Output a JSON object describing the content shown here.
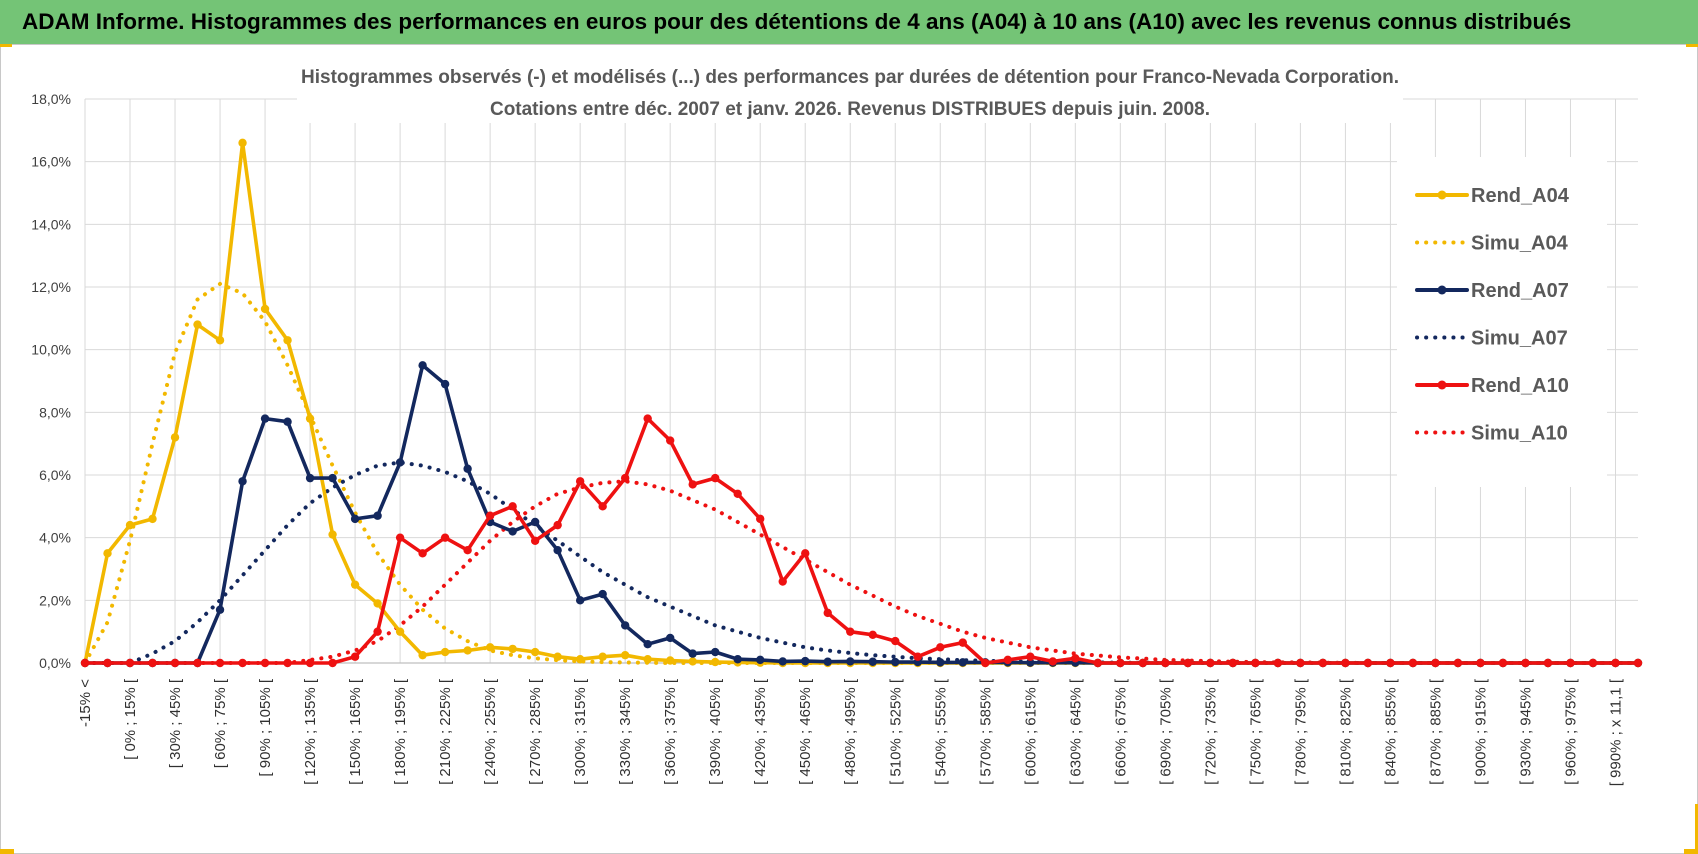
{
  "header": {
    "title": "ADAM Informe. Histogrammes des performances en euros pour des détentions de 4 ans (A04) à 10 ans (A10) avec les revenus connus distribués"
  },
  "colors": {
    "header_bg": "#74c476",
    "gold": "#f2b800",
    "navy": "#13285e",
    "red": "#ee1111",
    "grid": "#d9d9d9"
  },
  "chart_data": {
    "type": "line",
    "title": [
      "Histogrammes observés (-) et modélisés (...) des performances par durées de détention pour Franco-Nevada Corporation.",
      "Cotations entre déc. 2007 et janv. 2026.  Revenus DISTRIBUES depuis juin. 2008."
    ],
    "ylim": [
      0,
      18
    ],
    "y_ticks": [
      "0,0%",
      "2,0%",
      "4,0%",
      "6,0%",
      "8,0%",
      "10,0%",
      "12,0%",
      "14,0%",
      "16,0%",
      "18,0%"
    ],
    "x_labels": [
      "-15% <",
      "[ 0% ; 15% [",
      "[ 30% ; 45% [",
      "[ 60% ; 75% [",
      "[ 90% ; 105% [",
      "[ 120% ; 135% [",
      "[ 150% ; 165% [",
      "[ 180% ; 195% [",
      "[ 210% ; 225% [",
      "[ 240% ; 255% [",
      "[ 270% ; 285% [",
      "[ 300% ; 315% [",
      "[ 330% ; 345% [",
      "[ 360% ; 375% [",
      "[ 390% ; 405% [",
      "[ 420% ; 435% [",
      "[ 450% ; 465% [",
      "[ 480% ; 495% [",
      "[ 510% ; 525% [",
      "[ 540% ; 555% [",
      "[ 570% ; 585% [",
      "[ 600% ; 615% [",
      "[ 630% ; 645% [",
      "[ 660% ; 675% [",
      "[ 690% ; 705% [",
      "[ 720% ; 735% [",
      "[ 750% ; 765% [",
      "[ 780% ; 795% [",
      "[ 810% ; 825% [",
      "[ 840% ; 855% [",
      "[ 870% ; 885% [",
      "[ 900% ; 915% [",
      "[ 930% ; 945% [",
      "[ 960% ; 975% [",
      "[ 990% ; x 11,1 ["
    ],
    "num_points": 70,
    "series": [
      {
        "name": "Rend_A04",
        "style": "solid",
        "color": "#f2b800",
        "values": [
          0.0,
          3.5,
          4.4,
          4.6,
          7.2,
          10.8,
          10.3,
          16.6,
          11.3,
          10.3,
          7.8,
          4.1,
          2.5,
          1.9,
          1.0,
          0.25,
          0.35,
          0.4,
          0.5,
          0.45,
          0.35,
          0.2,
          0.12,
          0.2,
          0.25,
          0.12,
          0.08,
          0.05,
          0.03,
          0.02,
          0.01,
          0.0,
          0.0,
          0.0,
          0.0,
          0.0,
          0.0,
          0.0,
          0.0,
          0.0,
          0.0,
          0.0,
          0.0,
          0.0,
          0.0,
          0.0,
          0.0,
          0.0,
          0.0,
          0.0,
          0.0,
          0.0,
          0.0,
          0.0,
          0.0,
          0.0,
          0.0,
          0.0,
          0.0,
          0.0,
          0.0,
          0.0,
          0.0,
          0.0,
          0.0,
          0.0,
          0.0,
          0.0,
          0.0,
          0.0
        ]
      },
      {
        "name": "Simu_A04",
        "style": "dotted",
        "color": "#f2b800",
        "values": [
          0.0,
          1.3,
          3.9,
          7.0,
          9.9,
          11.6,
          12.1,
          11.8,
          10.9,
          9.5,
          7.9,
          6.3,
          4.8,
          3.5,
          2.5,
          1.7,
          1.1,
          0.7,
          0.4,
          0.25,
          0.15,
          0.09,
          0.05,
          0.03,
          0.02,
          0.01,
          0.0,
          0.0,
          0.0,
          0.0,
          0.0,
          0.0,
          0.0,
          0.0,
          0.0,
          0.0,
          0.0,
          0.0,
          0.0,
          0.0,
          0.0,
          0.0,
          0.0,
          0.0,
          0.0,
          0.0,
          0.0,
          0.0,
          0.0,
          0.0,
          0.0,
          0.0,
          0.0,
          0.0,
          0.0,
          0.0,
          0.0,
          0.0,
          0.0,
          0.0,
          0.0,
          0.0,
          0.0,
          0.0,
          0.0,
          0.0,
          0.0,
          0.0,
          0.0,
          0.0
        ]
      },
      {
        "name": "Rend_A07",
        "style": "solid",
        "color": "#13285e",
        "values": [
          0.0,
          0.0,
          0.0,
          0.0,
          0.0,
          0.0,
          1.7,
          5.8,
          7.8,
          7.7,
          5.9,
          5.9,
          4.6,
          4.7,
          6.4,
          9.5,
          8.9,
          6.2,
          4.5,
          4.2,
          4.5,
          3.6,
          2.0,
          2.2,
          1.2,
          0.6,
          0.8,
          0.3,
          0.35,
          0.12,
          0.1,
          0.05,
          0.06,
          0.04,
          0.05,
          0.04,
          0.03,
          0.03,
          0.02,
          0.02,
          0.02,
          0.02,
          0.01,
          0.01,
          0.01,
          0.0,
          0.0,
          0.0,
          0.0,
          0.0,
          0.0,
          0.0,
          0.0,
          0.0,
          0.0,
          0.0,
          0.0,
          0.0,
          0.0,
          0.0,
          0.0,
          0.0,
          0.0,
          0.0,
          0.0,
          0.0,
          0.0,
          0.0,
          0.0,
          0.0
        ]
      },
      {
        "name": "Simu_A07",
        "style": "dotted",
        "color": "#13285e",
        "values": [
          0.0,
          0.0,
          0.0,
          0.3,
          0.7,
          1.3,
          2.0,
          2.8,
          3.6,
          4.4,
          5.1,
          5.6,
          6.0,
          6.3,
          6.4,
          6.3,
          6.1,
          5.8,
          5.4,
          4.9,
          4.4,
          3.9,
          3.4,
          2.9,
          2.5,
          2.1,
          1.8,
          1.5,
          1.2,
          1.0,
          0.8,
          0.65,
          0.5,
          0.4,
          0.32,
          0.25,
          0.2,
          0.15,
          0.12,
          0.09,
          0.07,
          0.05,
          0.04,
          0.03,
          0.02,
          0.02,
          0.01,
          0.01,
          0.0,
          0.0,
          0.0,
          0.0,
          0.0,
          0.0,
          0.0,
          0.0,
          0.0,
          0.0,
          0.0,
          0.0,
          0.0,
          0.0,
          0.0,
          0.0,
          0.0,
          0.0,
          0.0,
          0.0,
          0.0,
          0.0
        ]
      },
      {
        "name": "Rend_A10",
        "style": "solid",
        "color": "#ee1111",
        "values": [
          0.0,
          0.0,
          0.0,
          0.0,
          0.0,
          0.0,
          0.0,
          0.0,
          0.0,
          0.0,
          0.0,
          0.0,
          0.2,
          1.0,
          4.0,
          3.5,
          4.0,
          3.6,
          4.7,
          5.0,
          3.9,
          4.4,
          5.8,
          5.0,
          5.9,
          7.8,
          7.1,
          5.7,
          5.9,
          5.4,
          4.6,
          2.6,
          3.5,
          1.6,
          1.0,
          0.9,
          0.7,
          0.2,
          0.5,
          0.65,
          0.0,
          0.1,
          0.2,
          0.05,
          0.15,
          0.0,
          0.0,
          0.0,
          0.0,
          0.0,
          0.0,
          0.0,
          0.0,
          0.0,
          0.0,
          0.0,
          0.0,
          0.0,
          0.0,
          0.0,
          0.0,
          0.0,
          0.0,
          0.0,
          0.0,
          0.0,
          0.0,
          0.0,
          0.0,
          0.0
        ]
      },
      {
        "name": "Simu_A10",
        "style": "dotted",
        "color": "#ee1111",
        "values": [
          0.0,
          0.0,
          0.0,
          0.0,
          0.0,
          0.0,
          0.0,
          0.0,
          0.0,
          0.0,
          0.1,
          0.2,
          0.4,
          0.7,
          1.2,
          1.8,
          2.5,
          3.2,
          3.9,
          4.5,
          5.0,
          5.4,
          5.6,
          5.75,
          5.8,
          5.7,
          5.5,
          5.2,
          4.9,
          4.5,
          4.1,
          3.7,
          3.3,
          2.9,
          2.5,
          2.15,
          1.8,
          1.5,
          1.25,
          1.0,
          0.8,
          0.65,
          0.5,
          0.4,
          0.3,
          0.24,
          0.18,
          0.14,
          0.1,
          0.08,
          0.06,
          0.04,
          0.03,
          0.02,
          0.02,
          0.01,
          0.01,
          0.0,
          0.0,
          0.0,
          0.0,
          0.0,
          0.0,
          0.0,
          0.0,
          0.0,
          0.0,
          0.0,
          0.0,
          0.0
        ]
      }
    ]
  }
}
